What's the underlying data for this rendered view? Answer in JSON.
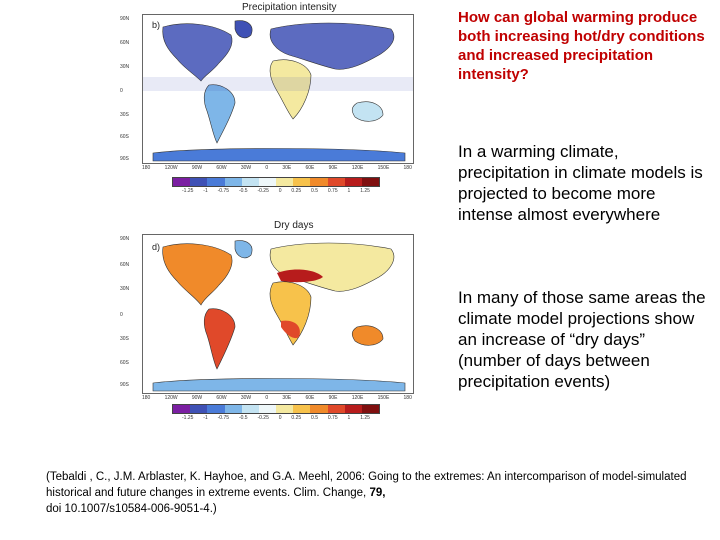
{
  "maps": [
    {
      "title": "Precipitation intensity",
      "letter": "b)",
      "lat_labels": [
        "90N",
        "60N",
        "30N",
        "0",
        "30S",
        "60S",
        "90S"
      ],
      "lon_labels": [
        "180",
        "120W",
        "90W",
        "60W",
        "30W",
        "0",
        "30E",
        "60E",
        "90E",
        "120E",
        "150E",
        "180"
      ],
      "legend_ticks": [
        "-1.25",
        "-1",
        "-0.75",
        "-0.5",
        "-0.25",
        "0",
        "0.25",
        "0.5",
        "0.75",
        "1",
        "1.25"
      ],
      "legend_colors": [
        "#7b1fa2",
        "#3f51b5",
        "#4a7bd8",
        "#7eb6e8",
        "#c3e3f2",
        "#eef7f9",
        "#f4e9a0",
        "#f7c24b",
        "#f08a2a",
        "#e0492a",
        "#b71c1c",
        "#7f0f0f"
      ]
    },
    {
      "title": "Dry days",
      "letter": "d)",
      "lat_labels": [
        "90N",
        "60N",
        "30N",
        "0",
        "30S",
        "60S",
        "90S"
      ],
      "lon_labels": [
        "180",
        "120W",
        "90W",
        "60W",
        "30W",
        "0",
        "30E",
        "60E",
        "90E",
        "120E",
        "150E",
        "180"
      ],
      "legend_ticks": [
        "-1.25",
        "-1",
        "-0.75",
        "-0.5",
        "-0.25",
        "0",
        "0.25",
        "0.5",
        "0.75",
        "1",
        "1.25"
      ],
      "legend_colors": [
        "#7b1fa2",
        "#3f51b5",
        "#4a7bd8",
        "#7eb6e8",
        "#c3e3f2",
        "#eef7f9",
        "#f4e9a0",
        "#f7c24b",
        "#f08a2a",
        "#e0492a",
        "#b71c1c",
        "#7f0f0f"
      ]
    }
  ],
  "question": "How can global warming produce both increasing hot/dry conditions and increased precipitation intensity?",
  "paragraph_1": "In a warming climate, precipitation in climate models is projected to become more intense almost everywhere",
  "paragraph_2": "In many of those same areas the climate model projections show an increase of “dry days” (number of days between precipitation events)",
  "citation": {
    "text": "(Tebaldi , C., J.M. Arblaster, K. Hayhoe, and G.A. Meehl, 2006:  Going to the extremes:  An intercomparison of model-simulated historical and future changes in extreme events.  Clim. Change, ",
    "volume": "79,",
    "doi": "doi 10.1007/s10584-006-9051-4.)"
  }
}
